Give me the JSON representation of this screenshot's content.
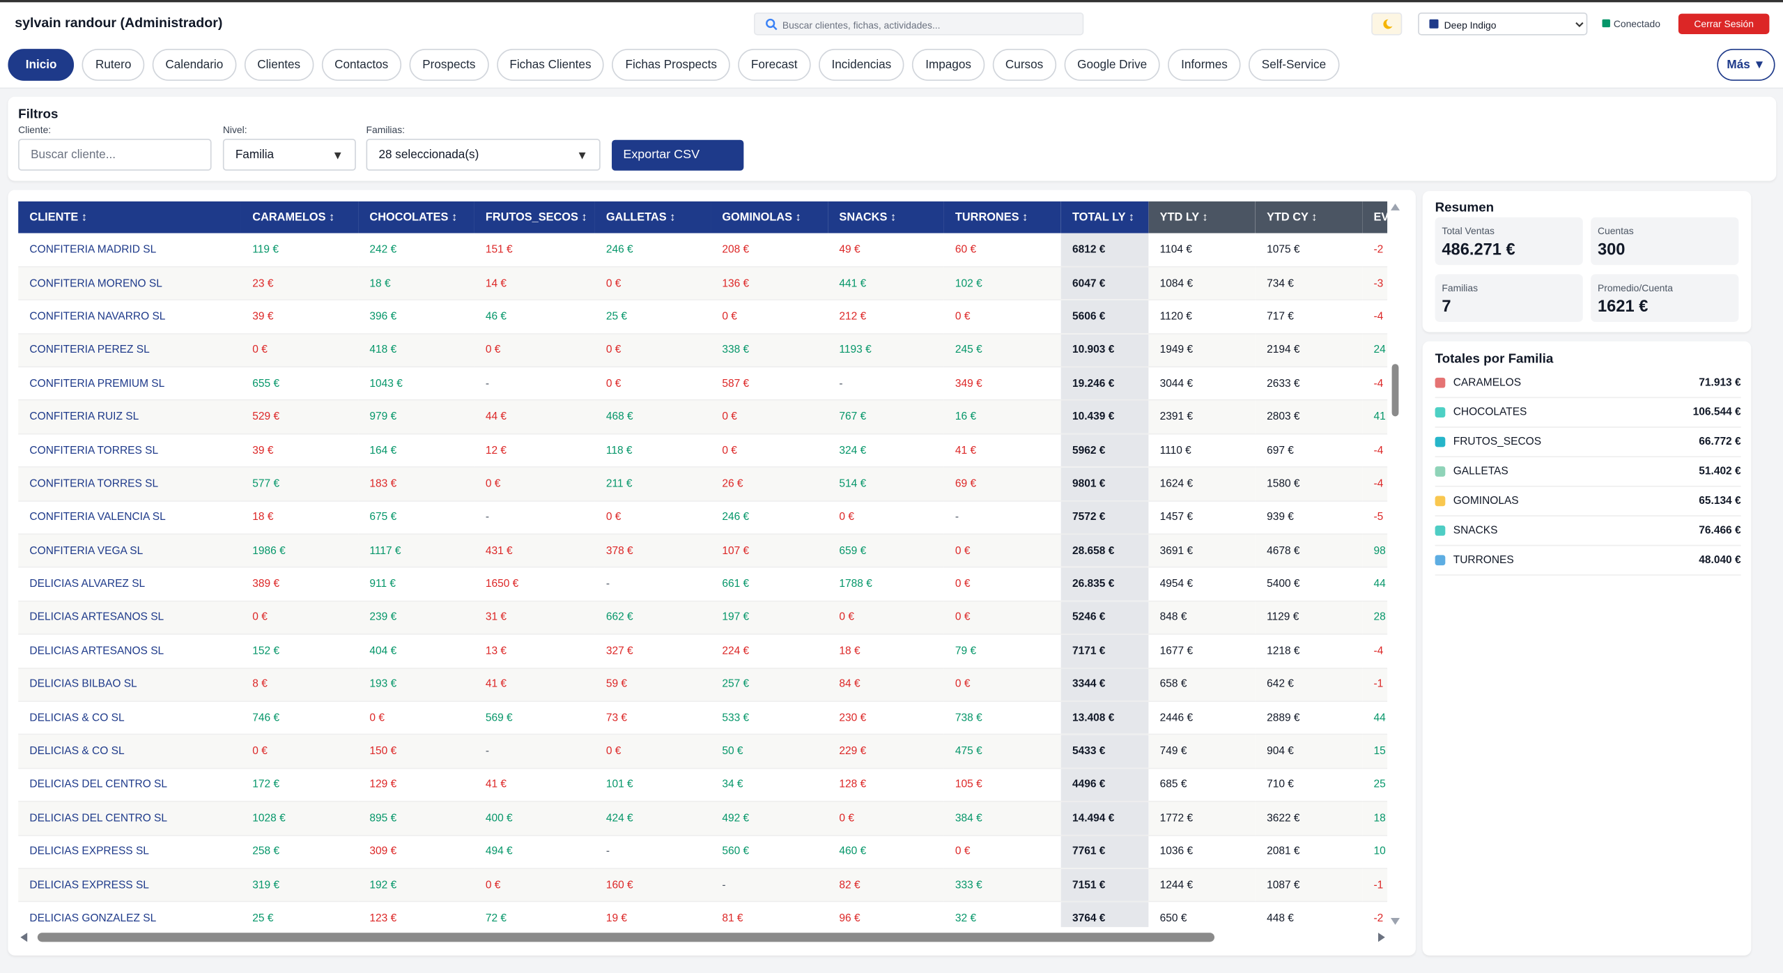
{
  "header": {
    "title": "sylvain randour (Administrador)",
    "search_placeholder": "Buscar clientes, fichas, actividades...",
    "theme": "Deep Indigo",
    "status": "Conectado",
    "logout": "Cerrar Sesión"
  },
  "nav": {
    "items": [
      "Inicio",
      "Rutero",
      "Calendario",
      "Clientes",
      "Contactos",
      "Prospects",
      "Fichas Clientes",
      "Fichas Prospects",
      "Forecast",
      "Incidencias",
      "Impagos",
      "Cursos",
      "Google Drive",
      "Informes",
      "Self-Service"
    ],
    "active": 0,
    "more": "Más ▼"
  },
  "filters": {
    "title": "Filtros",
    "cliente_label": "Cliente:",
    "cliente_placeholder": "Buscar cliente...",
    "nivel_label": "Nivel:",
    "nivel_value": "Familia",
    "familias_label": "Familias:",
    "familias_value": "28 seleccionada(s)",
    "export": "Exportar CSV"
  },
  "table": {
    "columns": [
      "CLIENTE ↕",
      "CARAMELOS ↕",
      "CHOCOLATES ↕",
      "FRUTOS_SECOS ↕",
      "GALLETAS ↕",
      "GOMINOLAS ↕",
      "SNACKS ↕",
      "TURRONES ↕",
      "TOTAL LY ↕",
      "YTD LY ↕",
      "YTD CY ↕",
      "EV"
    ],
    "rows": [
      {
        "cells": [
          "CONFITERIA MADRID SL",
          "119 €",
          "242 €",
          "151 €",
          "246 €",
          "208 €",
          "49 €",
          "60 €",
          "6812 €",
          "1104 €",
          "1075 €",
          "-2"
        ],
        "colors": [
          null,
          "green",
          "green",
          "red",
          "green",
          "red",
          "red",
          "red",
          null,
          null,
          null,
          "red"
        ]
      },
      {
        "cells": [
          "CONFITERIA MORENO SL",
          "23 €",
          "18 €",
          "14 €",
          "0 €",
          "136 €",
          "441 €",
          "102 €",
          "6047 €",
          "1084 €",
          "734 €",
          "-3"
        ],
        "colors": [
          null,
          "red",
          "green",
          "red",
          "red",
          "red",
          "green",
          "green",
          null,
          null,
          null,
          "red"
        ]
      },
      {
        "cells": [
          "CONFITERIA NAVARRO SL",
          "39 €",
          "396 €",
          "46 €",
          "25 €",
          "0 €",
          "212 €",
          "0 €",
          "5606 €",
          "1120 €",
          "717 €",
          "-4"
        ],
        "colors": [
          null,
          "red",
          "green",
          "green",
          "green",
          "red",
          "red",
          "red",
          null,
          null,
          null,
          "red"
        ]
      },
      {
        "cells": [
          "CONFITERIA PEREZ SL",
          "0 €",
          "418 €",
          "0 €",
          "0 €",
          "338 €",
          "1193 €",
          "245 €",
          "10.903 €",
          "1949 €",
          "2194 €",
          "24"
        ],
        "colors": [
          null,
          "red",
          "green",
          "red",
          "red",
          "green",
          "green",
          "green",
          null,
          null,
          null,
          "green"
        ]
      },
      {
        "cells": [
          "CONFITERIA PREMIUM SL",
          "655 €",
          "1043 €",
          "-",
          "0 €",
          "587 €",
          "-",
          "349 €",
          "19.246 €",
          "3044 €",
          "2633 €",
          "-4"
        ],
        "colors": [
          null,
          "green",
          "green",
          null,
          "red",
          "red",
          null,
          "red",
          null,
          null,
          null,
          "red"
        ]
      },
      {
        "cells": [
          "CONFITERIA RUIZ SL",
          "529 €",
          "979 €",
          "44 €",
          "468 €",
          "0 €",
          "767 €",
          "16 €",
          "10.439 €",
          "2391 €",
          "2803 €",
          "41"
        ],
        "colors": [
          null,
          "red",
          "green",
          "red",
          "green",
          "red",
          "green",
          "green",
          null,
          null,
          null,
          "green"
        ]
      },
      {
        "cells": [
          "CONFITERIA TORRES SL",
          "39 €",
          "164 €",
          "12 €",
          "118 €",
          "0 €",
          "324 €",
          "41 €",
          "5962 €",
          "1110 €",
          "697 €",
          "-4"
        ],
        "colors": [
          null,
          "red",
          "green",
          "red",
          "green",
          "red",
          "green",
          "red",
          null,
          null,
          null,
          "red"
        ]
      },
      {
        "cells": [
          "CONFITERIA TORRES SL",
          "577 €",
          "183 €",
          "0 €",
          "211 €",
          "26 €",
          "514 €",
          "69 €",
          "9801 €",
          "1624 €",
          "1580 €",
          "-4"
        ],
        "colors": [
          null,
          "green",
          "red",
          "red",
          "green",
          "red",
          "green",
          "red",
          null,
          null,
          null,
          "red"
        ]
      },
      {
        "cells": [
          "CONFITERIA VALENCIA SL",
          "18 €",
          "675 €",
          "-",
          "0 €",
          "246 €",
          "0 €",
          "-",
          "7572 €",
          "1457 €",
          "939 €",
          "-5"
        ],
        "colors": [
          null,
          "red",
          "green",
          null,
          "red",
          "green",
          "red",
          null,
          null,
          null,
          null,
          "red"
        ]
      },
      {
        "cells": [
          "CONFITERIA VEGA SL",
          "1986 €",
          "1117 €",
          "431 €",
          "378 €",
          "107 €",
          "659 €",
          "0 €",
          "28.658 €",
          "3691 €",
          "4678 €",
          "98"
        ],
        "colors": [
          null,
          "green",
          "green",
          "red",
          "red",
          "red",
          "green",
          "red",
          null,
          null,
          null,
          "green"
        ]
      },
      {
        "cells": [
          "DELICIAS ALVAREZ SL",
          "389 €",
          "911 €",
          "1650 €",
          "-",
          "661 €",
          "1788 €",
          "0 €",
          "26.835 €",
          "4954 €",
          "5400 €",
          "44"
        ],
        "colors": [
          null,
          "red",
          "green",
          "red",
          null,
          "green",
          "green",
          "red",
          null,
          null,
          null,
          "green"
        ]
      },
      {
        "cells": [
          "DELICIAS ARTESANOS SL",
          "0 €",
          "239 €",
          "31 €",
          "662 €",
          "197 €",
          "0 €",
          "0 €",
          "5246 €",
          "848 €",
          "1129 €",
          "28"
        ],
        "colors": [
          null,
          "red",
          "green",
          "red",
          "green",
          "green",
          "red",
          "red",
          null,
          null,
          null,
          "green"
        ]
      },
      {
        "cells": [
          "DELICIAS ARTESANOS SL",
          "152 €",
          "404 €",
          "13 €",
          "327 €",
          "224 €",
          "18 €",
          "79 €",
          "7171 €",
          "1677 €",
          "1218 €",
          "-4"
        ],
        "colors": [
          null,
          "green",
          "green",
          "red",
          "red",
          "red",
          "red",
          "green",
          null,
          null,
          null,
          "red"
        ]
      },
      {
        "cells": [
          "DELICIAS BILBAO SL",
          "8 €",
          "193 €",
          "41 €",
          "59 €",
          "257 €",
          "84 €",
          "0 €",
          "3344 €",
          "658 €",
          "642 €",
          "-1"
        ],
        "colors": [
          null,
          "red",
          "green",
          "red",
          "red",
          "green",
          "red",
          "red",
          null,
          null,
          null,
          "red"
        ]
      },
      {
        "cells": [
          "DELICIAS & CO SL",
          "746 €",
          "0 €",
          "569 €",
          "73 €",
          "533 €",
          "230 €",
          "738 €",
          "13.408 €",
          "2446 €",
          "2889 €",
          "44"
        ],
        "colors": [
          null,
          "green",
          "red",
          "green",
          "red",
          "green",
          "red",
          "green",
          null,
          null,
          null,
          "green"
        ]
      },
      {
        "cells": [
          "DELICIAS & CO SL",
          "0 €",
          "150 €",
          "-",
          "0 €",
          "50 €",
          "229 €",
          "475 €",
          "5433 €",
          "749 €",
          "904 €",
          "15"
        ],
        "colors": [
          null,
          "red",
          "red",
          null,
          "red",
          "green",
          "red",
          "green",
          null,
          null,
          null,
          "green"
        ]
      },
      {
        "cells": [
          "DELICIAS DEL CENTRO SL",
          "172 €",
          "129 €",
          "41 €",
          "101 €",
          "34 €",
          "128 €",
          "105 €",
          "4496 €",
          "685 €",
          "710 €",
          "25"
        ],
        "colors": [
          null,
          "green",
          "red",
          "red",
          "green",
          "green",
          "red",
          "red",
          null,
          null,
          null,
          "green"
        ]
      },
      {
        "cells": [
          "DELICIAS DEL CENTRO SL",
          "1028 €",
          "895 €",
          "400 €",
          "424 €",
          "492 €",
          "0 €",
          "384 €",
          "14.494 €",
          "1772 €",
          "3622 €",
          "18"
        ],
        "colors": [
          null,
          "green",
          "green",
          "green",
          "green",
          "green",
          "red",
          "green",
          null,
          null,
          null,
          "green"
        ]
      },
      {
        "cells": [
          "DELICIAS EXPRESS SL",
          "258 €",
          "309 €",
          "494 €",
          "-",
          "560 €",
          "460 €",
          "0 €",
          "7761 €",
          "1036 €",
          "2081 €",
          "10"
        ],
        "colors": [
          null,
          "green",
          "red",
          "green",
          null,
          "green",
          "green",
          "red",
          null,
          null,
          null,
          "green"
        ]
      },
      {
        "cells": [
          "DELICIAS EXPRESS SL",
          "319 €",
          "192 €",
          "0 €",
          "160 €",
          "-",
          "82 €",
          "333 €",
          "7151 €",
          "1244 €",
          "1087 €",
          "-1"
        ],
        "colors": [
          null,
          "green",
          "green",
          "red",
          "red",
          null,
          "red",
          "green",
          null,
          null,
          null,
          "red"
        ]
      },
      {
        "cells": [
          "DELICIAS GONZALEZ SL",
          "25 €",
          "123 €",
          "72 €",
          "19 €",
          "81 €",
          "96 €",
          "32 €",
          "3764 €",
          "650 €",
          "448 €",
          "-2"
        ],
        "colors": [
          null,
          "green",
          "red",
          "green",
          "red",
          "red",
          "red",
          "green",
          null,
          null,
          null,
          "red"
        ]
      }
    ]
  },
  "summary": {
    "title": "Resumen",
    "stats": [
      {
        "label": "Total Ventas",
        "value": "486.271 €"
      },
      {
        "label": "Cuentas",
        "value": "300"
      },
      {
        "label": "Familias",
        "value": "7"
      },
      {
        "label": "Promedio/Cuenta",
        "value": "1621 €"
      }
    ]
  },
  "family_totals": {
    "title": "Totales por Familia",
    "items": [
      {
        "name": "CARAMELOS",
        "value": "71.913 €",
        "color": "#e57373"
      },
      {
        "name": "CHOCOLATES",
        "value": "106.544 €",
        "color": "#4dd0c4"
      },
      {
        "name": "FRUTOS_SECOS",
        "value": "66.772 €",
        "color": "#26b5c9"
      },
      {
        "name": "GALLETAS",
        "value": "51.402 €",
        "color": "#8fd3b8"
      },
      {
        "name": "GOMINOLAS",
        "value": "65.134 €",
        "color": "#f9c74f"
      },
      {
        "name": "SNACKS",
        "value": "76.466 €",
        "color": "#4ecdc4"
      },
      {
        "name": "TURRONES",
        "value": "48.040 €",
        "color": "#5dade2"
      }
    ]
  }
}
